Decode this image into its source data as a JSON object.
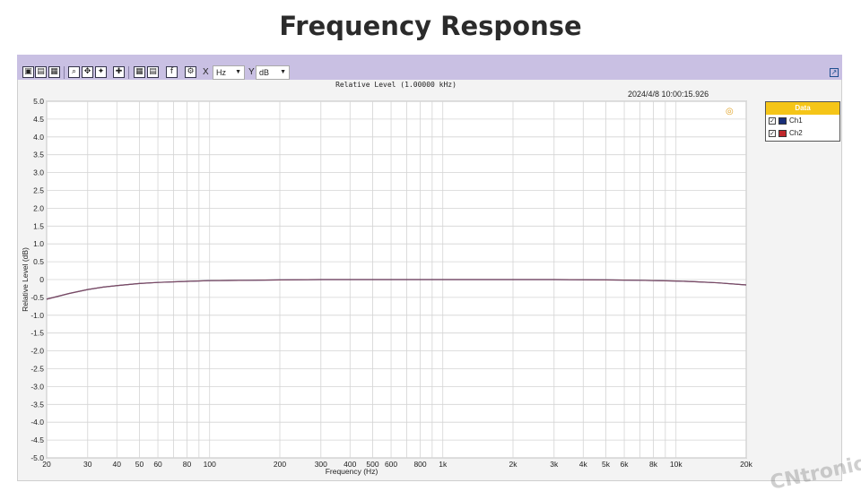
{
  "page": {
    "title": "Frequency Response"
  },
  "toolbar": {
    "x_label": "X",
    "x_unit": "Hz",
    "y_label": "Y",
    "y_unit": "dB"
  },
  "chart_data": {
    "type": "line",
    "title": "Relative Level (1.00000 kHz)",
    "timestamp": "2024/4/8 10:00:15.926",
    "xlabel": "Frequency (Hz)",
    "ylabel": "Relative Level (dB)",
    "xscale": "log",
    "xlim": [
      20,
      20000
    ],
    "ylim": [
      -5.0,
      5.0
    ],
    "grid": true,
    "legend_position": "right",
    "legend_title": "Data",
    "x_ticks": [
      20,
      30,
      40,
      50,
      60,
      80,
      100,
      200,
      300,
      400,
      500,
      600,
      800,
      1000,
      2000,
      3000,
      4000,
      5000,
      6000,
      8000,
      10000,
      20000
    ],
    "x_tick_labels": [
      "20",
      "30",
      "40",
      "50",
      "60",
      "80",
      "100",
      "200",
      "300",
      "400",
      "500",
      "600",
      "800",
      "1k",
      "2k",
      "3k",
      "4k",
      "5k",
      "6k",
      "8k",
      "10k",
      "20k"
    ],
    "y_ticks": [
      5.0,
      4.5,
      4.0,
      3.5,
      3.0,
      2.5,
      2.0,
      1.5,
      1.0,
      0.5,
      0,
      -0.5,
      -1.0,
      -1.5,
      -2.0,
      -2.5,
      -3.0,
      -3.5,
      -4.0,
      -4.5,
      -5.0
    ],
    "y_tick_labels": [
      "5.0",
      "4.5",
      "4.0",
      "3.5",
      "3.0",
      "2.5",
      "2.0",
      "1.5",
      "1.0",
      "0.5",
      "0",
      "-0.5",
      "-1.0",
      "-1.5",
      "-2.0",
      "-2.5",
      "-3.0",
      "-3.5",
      "-4.0",
      "-4.5",
      "-5.0"
    ],
    "x": [
      20,
      25,
      30,
      35,
      40,
      50,
      60,
      80,
      100,
      150,
      200,
      300,
      500,
      1000,
      2000,
      3000,
      5000,
      7000,
      10000,
      12000,
      15000,
      20000
    ],
    "series": [
      {
        "name": "Ch1",
        "color": "#1a2f7a",
        "values": [
          -0.55,
          -0.39,
          -0.28,
          -0.21,
          -0.17,
          -0.11,
          -0.08,
          -0.05,
          -0.03,
          -0.02,
          -0.01,
          0,
          0,
          0,
          0,
          0,
          -0.01,
          -0.02,
          -0.04,
          -0.06,
          -0.09,
          -0.15
        ]
      },
      {
        "name": "Ch2",
        "color": "#c0282c",
        "values": [
          -0.55,
          -0.39,
          -0.28,
          -0.21,
          -0.17,
          -0.11,
          -0.08,
          -0.05,
          -0.03,
          -0.02,
          -0.01,
          0,
          0,
          0,
          0,
          0,
          -0.01,
          -0.02,
          -0.04,
          -0.06,
          -0.09,
          -0.15
        ]
      }
    ],
    "trace_color": "#8a4a5a"
  },
  "watermark": {
    "text": "CNtronic"
  }
}
